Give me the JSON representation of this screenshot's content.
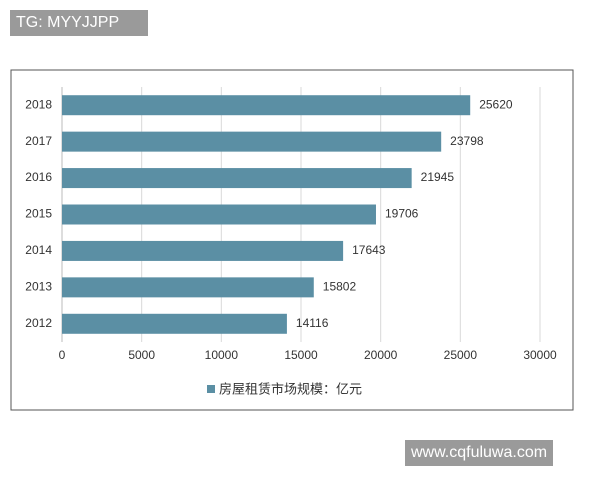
{
  "watermark_top": "TG: MYYJJPP",
  "watermark_bottom": "www.cqfuluwa.com",
  "chart_data": {
    "type": "barh",
    "categories": [
      "2018",
      "2017",
      "2016",
      "2015",
      "2014",
      "2013",
      "2012"
    ],
    "series": [
      {
        "name": "房屋租赁市场规模：亿元",
        "color": "#5b8fa4",
        "values": [
          25620,
          23798,
          21945,
          19706,
          17643,
          15802,
          14116
        ]
      }
    ],
    "xlim": [
      0,
      30000
    ],
    "xticks": [
      0,
      5000,
      10000,
      15000,
      20000,
      25000,
      30000
    ],
    "grid": true,
    "legend": "bottom"
  }
}
